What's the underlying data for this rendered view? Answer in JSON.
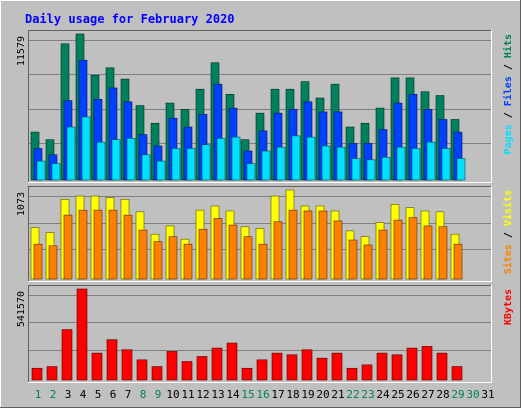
{
  "title": "Daily usage for February 2020",
  "colors": {
    "background": "#C0C0C0",
    "plot": "#C0C0C0",
    "hits": "#00805C",
    "files": "#0040FF",
    "pages": "#00E0FF",
    "visits": "#FFFF00",
    "sites": "#FF8000",
    "kbytes": "#FF0000",
    "title": "#0000FF",
    "weekday": "#000000",
    "weekend": "#00805C"
  },
  "chart_data": [
    {
      "type": "bar",
      "panel": "hits-files-pages",
      "title": "Daily usage for February 2020",
      "categories": [
        "1",
        "2",
        "3",
        "4",
        "5",
        "6",
        "7",
        "8",
        "9",
        "10",
        "11",
        "12",
        "13",
        "14",
        "15",
        "16",
        "17",
        "18",
        "19",
        "20",
        "21",
        "22",
        "23",
        "24",
        "25",
        "26",
        "27",
        "28",
        "29"
      ],
      "series": [
        {
          "name": "Hits",
          "values": [
            3800,
            3200,
            10800,
            11579,
            8300,
            8900,
            8000,
            5900,
            4500,
            6100,
            5600,
            7200,
            9300,
            6800,
            3200,
            5300,
            7200,
            7200,
            7800,
            6500,
            7600,
            4200,
            4500,
            5700,
            8100,
            8100,
            7000,
            6700,
            4800
          ]
        },
        {
          "name": "Files",
          "values": [
            2500,
            2000,
            6300,
            9500,
            6400,
            7300,
            6200,
            3600,
            2700,
            4900,
            4200,
            5200,
            7600,
            5700,
            2300,
            3900,
            5300,
            5600,
            6200,
            5400,
            5400,
            2900,
            2900,
            4000,
            6100,
            6800,
            5600,
            4800,
            3800
          ]
        },
        {
          "name": "Pages",
          "values": [
            1500,
            1300,
            4200,
            5000,
            3000,
            3200,
            3300,
            2000,
            1500,
            2500,
            2500,
            2800,
            3300,
            3400,
            1300,
            2300,
            2600,
            3500,
            3400,
            2700,
            2600,
            1700,
            1600,
            1800,
            2600,
            2500,
            3000,
            2500,
            1700
          ]
        }
      ],
      "ytick": "11579",
      "ylabel_parts": [
        "Pages",
        "Files",
        "Hits"
      ]
    },
    {
      "type": "bar",
      "panel": "visits-sites",
      "categories": [
        "1",
        "2",
        "3",
        "4",
        "5",
        "6",
        "7",
        "8",
        "9",
        "10",
        "11",
        "12",
        "13",
        "14",
        "15",
        "16",
        "17",
        "18",
        "19",
        "20",
        "21",
        "22",
        "23",
        "24",
        "25",
        "26",
        "27",
        "28",
        "29"
      ],
      "series": [
        {
          "name": "Visits",
          "values": [
            620,
            560,
            960,
            1000,
            1000,
            980,
            960,
            810,
            540,
            640,
            480,
            830,
            880,
            820,
            630,
            610,
            1000,
            1073,
            880,
            880,
            820,
            580,
            510,
            680,
            900,
            860,
            820,
            810,
            540
          ]
        },
        {
          "name": "Sites",
          "values": [
            420,
            400,
            770,
            830,
            830,
            830,
            770,
            590,
            450,
            510,
            420,
            600,
            730,
            650,
            510,
            420,
            690,
            830,
            820,
            820,
            700,
            470,
            410,
            590,
            710,
            740,
            640,
            630,
            420
          ]
        }
      ],
      "ytick": "1073",
      "ylabel_parts": [
        "Sites",
        "Visits"
      ]
    },
    {
      "type": "bar",
      "panel": "kbytes",
      "categories": [
        "1",
        "2",
        "3",
        "4",
        "5",
        "6",
        "7",
        "8",
        "9",
        "10",
        "11",
        "12",
        "13",
        "14",
        "15",
        "16",
        "17",
        "18",
        "19",
        "20",
        "21",
        "22",
        "23",
        "24",
        "25",
        "26",
        "27",
        "28",
        "29"
      ],
      "series": [
        {
          "name": "KBytes",
          "values": [
            70000,
            80000,
            300000,
            541570,
            160000,
            240000,
            180000,
            120000,
            80000,
            170000,
            110000,
            140000,
            190000,
            220000,
            70000,
            120000,
            160000,
            150000,
            180000,
            130000,
            160000,
            70000,
            90000,
            160000,
            150000,
            190000,
            200000,
            160000,
            80000
          ]
        }
      ],
      "ytick": "541570",
      "ylabel_parts": [
        "KBytes"
      ]
    }
  ],
  "x_axis": {
    "days": [
      "1",
      "2",
      "3",
      "4",
      "5",
      "6",
      "7",
      "8",
      "9",
      "10",
      "11",
      "12",
      "13",
      "14",
      "15",
      "16",
      "17",
      "18",
      "19",
      "20",
      "21",
      "22",
      "23",
      "24",
      "25",
      "26",
      "27",
      "28",
      "29",
      "30",
      "31"
    ],
    "weekend_days": [
      "1",
      "2",
      "8",
      "9",
      "15",
      "16",
      "22",
      "23",
      "29",
      "30"
    ]
  }
}
